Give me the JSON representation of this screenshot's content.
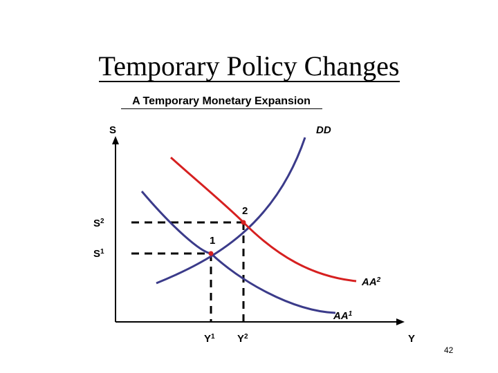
{
  "slide": {
    "title": "Temporary Policy Changes",
    "subtitle": "A Temporary Monetary Expansion",
    "page_number": "42"
  },
  "diagram": {
    "axes": {
      "y_label": "S",
      "x_label": "Y"
    },
    "curves": {
      "dd": {
        "label": "DD",
        "color": "#3b3b8a"
      },
      "aa1": {
        "label": "AA",
        "sup": "1",
        "color": "#3b3b8a"
      },
      "aa2": {
        "label": "AA",
        "sup": "2",
        "color": "#d62020"
      }
    },
    "points": {
      "p1": {
        "label": "1",
        "color": "#d62020"
      },
      "p2": {
        "label": "2",
        "color": "#d62020"
      }
    },
    "levels": {
      "s1": {
        "label": "S",
        "sup": "1"
      },
      "s2": {
        "label": "S",
        "sup": "2"
      },
      "y1": {
        "label": "Y",
        "sup": "1"
      },
      "y2": {
        "label": "Y",
        "sup": "2"
      }
    }
  }
}
